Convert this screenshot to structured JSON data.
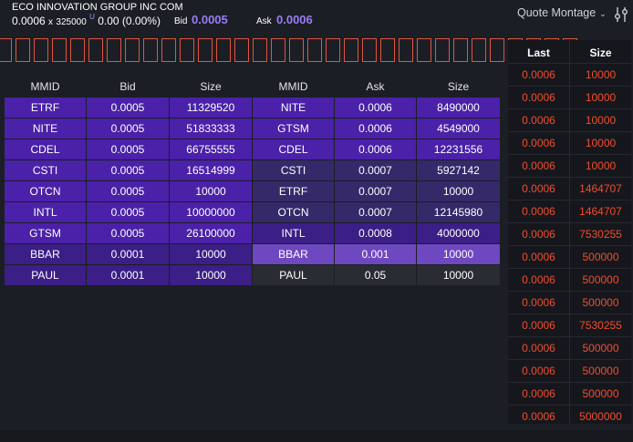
{
  "header": {
    "company_name": "ECO INNOVATION GROUP INC COM",
    "last_price": "0.0006",
    "x_sep": "x",
    "last_size": "325000",
    "size_marker": "U",
    "change": "0.00 (0.00%)",
    "bid_label": "Bid",
    "bid_value": "0.0005",
    "ask_label": "Ask",
    "ask_value": "0.0006",
    "montage_label": "Quote Montage",
    "montage_icon": "chevron-down-icon",
    "settings_icon": "sliders-icon"
  },
  "tick_boxes": 32,
  "book": {
    "headers": [
      "MMID",
      "Bid",
      "Size",
      "MMID",
      "Ask",
      "Size"
    ],
    "rows": [
      {
        "bid_mmid": "ETRF",
        "bid": "0.0005",
        "bid_size": "11329520",
        "ask_mmid": "NITE",
        "ask": "0.0006",
        "ask_size": "8490000",
        "bid_level": 1,
        "ask_level": 1
      },
      {
        "bid_mmid": "NITE",
        "bid": "0.0005",
        "bid_size": "51833333",
        "ask_mmid": "GTSM",
        "ask": "0.0006",
        "ask_size": "4549000",
        "bid_level": 1,
        "ask_level": 1
      },
      {
        "bid_mmid": "CDEL",
        "bid": "0.0005",
        "bid_size": "66755555",
        "ask_mmid": "CDEL",
        "ask": "0.0006",
        "ask_size": "12231556",
        "bid_level": 1,
        "ask_level": 1
      },
      {
        "bid_mmid": "CSTI",
        "bid": "0.0005",
        "bid_size": "16514999",
        "ask_mmid": "CSTI",
        "ask": "0.0007",
        "ask_size": "5927142",
        "bid_level": 1,
        "ask_level": 2
      },
      {
        "bid_mmid": "OTCN",
        "bid": "0.0005",
        "bid_size": "10000",
        "ask_mmid": "ETRF",
        "ask": "0.0007",
        "ask_size": "10000",
        "bid_level": 1,
        "ask_level": 2
      },
      {
        "bid_mmid": "INTL",
        "bid": "0.0005",
        "bid_size": "10000000",
        "ask_mmid": "OTCN",
        "ask": "0.0007",
        "ask_size": "12145980",
        "bid_level": 1,
        "ask_level": 2
      },
      {
        "bid_mmid": "GTSM",
        "bid": "0.0005",
        "bid_size": "26100000",
        "ask_mmid": "INTL",
        "ask": "0.0008",
        "ask_size": "4000000",
        "bid_level": 1,
        "ask_level": 3
      },
      {
        "bid_mmid": "BBAR",
        "bid": "0.0001",
        "bid_size": "10000",
        "ask_mmid": "BBAR",
        "ask": "0.001",
        "ask_size": "10000",
        "bid_level": 2,
        "ask_level": 4
      },
      {
        "bid_mmid": "PAUL",
        "bid": "0.0001",
        "bid_size": "10000",
        "ask_mmid": "PAUL",
        "ask": "0.05",
        "ask_size": "10000",
        "bid_level": 2,
        "ask_level": 5
      }
    ]
  },
  "trades": {
    "headers": [
      "Last",
      "Size"
    ],
    "rows": [
      {
        "last": "0.0006",
        "size": "10000"
      },
      {
        "last": "0.0006",
        "size": "10000"
      },
      {
        "last": "0.0006",
        "size": "10000"
      },
      {
        "last": "0.0006",
        "size": "10000"
      },
      {
        "last": "0.0006",
        "size": "10000"
      },
      {
        "last": "0.0006",
        "size": "1464707"
      },
      {
        "last": "0.0006",
        "size": "1464707"
      },
      {
        "last": "0.0006",
        "size": "7530255"
      },
      {
        "last": "0.0006",
        "size": "500000"
      },
      {
        "last": "0.0006",
        "size": "500000"
      },
      {
        "last": "0.0006",
        "size": "500000"
      },
      {
        "last": "0.0006",
        "size": "7530255"
      },
      {
        "last": "0.0006",
        "size": "500000"
      },
      {
        "last": "0.0006",
        "size": "500000"
      },
      {
        "last": "0.0006",
        "size": "500000"
      },
      {
        "last": "0.0006",
        "size": "5000000"
      }
    ]
  },
  "colors": {
    "background": "#1b1e24",
    "accent": "#9b7df5",
    "trade_text": "#f24d2e",
    "tick_border": "#e0553f"
  }
}
